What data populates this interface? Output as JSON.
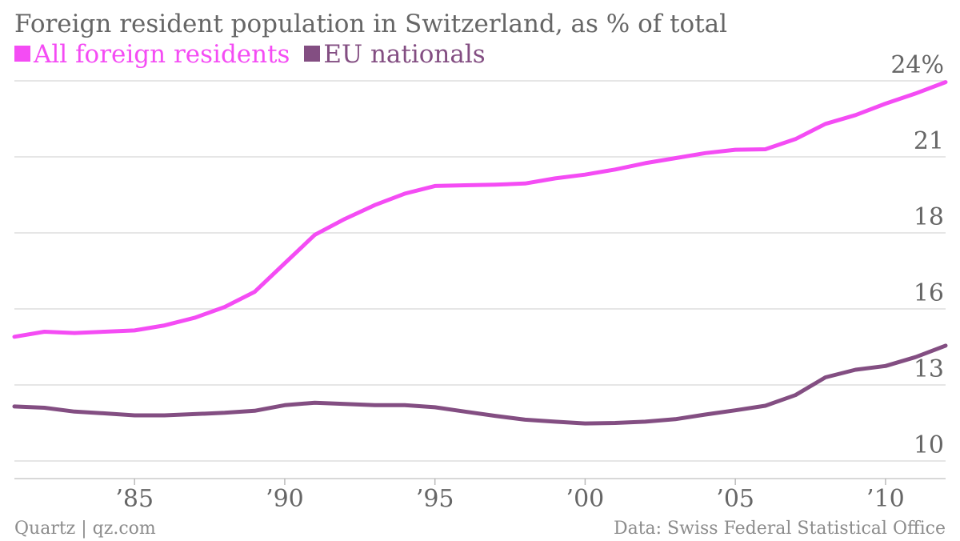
{
  "colors": {
    "all_foreign": "#f44cf4",
    "eu": "#834e82",
    "grid": "#dddddd",
    "text": "#666666",
    "footer": "#8c8c8c"
  },
  "footer": {
    "source_left": "Quartz | qz.com",
    "source_right": "Data: Swiss Federal Statistical Office"
  },
  "chart_data": {
    "type": "line",
    "title": "Foreign resident population in Switzerland, as % of total",
    "xlim": [
      1981,
      2012
    ],
    "ylim": [
      10,
      24
    ],
    "y_ticks": [
      {
        "value": 10,
        "label": "10"
      },
      {
        "value": 13,
        "label": "13"
      },
      {
        "value": 16,
        "label": "16"
      },
      {
        "value": 18,
        "label": "18"
      },
      {
        "value": 21,
        "label": "21"
      },
      {
        "value": 24,
        "label": "24%"
      }
    ],
    "x_ticks": [
      {
        "value": 1985,
        "label": "’85"
      },
      {
        "value": 1990,
        "label": "’90"
      },
      {
        "value": 1995,
        "label": "’95"
      },
      {
        "value": 2000,
        "label": "’00"
      },
      {
        "value": 2005,
        "label": "’05"
      },
      {
        "value": 2010,
        "label": "’10"
      }
    ],
    "grid": true,
    "legend": "top-left",
    "series": [
      {
        "name": "All foreign residents",
        "color": "#f44cf4",
        "x": [
          1981,
          1982,
          1983,
          1984,
          1985,
          1986,
          1987,
          1988,
          1989,
          1990,
          1991,
          1992,
          1993,
          1994,
          1995,
          1996,
          1997,
          1998,
          1999,
          2000,
          2001,
          2002,
          2003,
          2004,
          2005,
          2006,
          2007,
          2008,
          2009,
          2010,
          2011,
          2012
        ],
        "values": [
          14.9,
          15.1,
          15.05,
          15.1,
          15.15,
          15.35,
          15.65,
          16.05,
          16.45,
          17.2,
          17.95,
          18.55,
          19.1,
          19.55,
          19.85,
          19.88,
          19.9,
          19.95,
          20.15,
          20.3,
          20.5,
          20.75,
          20.95,
          21.15,
          21.28,
          21.3,
          21.7,
          22.3,
          22.65,
          23.1,
          23.5,
          23.95
        ]
      },
      {
        "name": "EU nationals",
        "color": "#834e82",
        "x": [
          1981,
          1982,
          1983,
          1984,
          1985,
          1986,
          1987,
          1988,
          1989,
          1990,
          1991,
          1992,
          1993,
          1994,
          1995,
          1996,
          1997,
          1998,
          1999,
          2000,
          2001,
          2002,
          2003,
          2004,
          2005,
          2006,
          2007,
          2008,
          2009,
          2010,
          2011,
          2012
        ],
        "values": [
          12.15,
          12.1,
          11.95,
          11.88,
          11.8,
          11.8,
          11.85,
          11.9,
          11.98,
          12.2,
          12.3,
          12.25,
          12.2,
          12.2,
          12.12,
          11.95,
          11.78,
          11.63,
          11.55,
          11.48,
          11.5,
          11.55,
          11.65,
          11.83,
          12.0,
          12.18,
          12.6,
          13.3,
          13.6,
          13.75,
          14.1,
          14.55
        ]
      }
    ]
  }
}
